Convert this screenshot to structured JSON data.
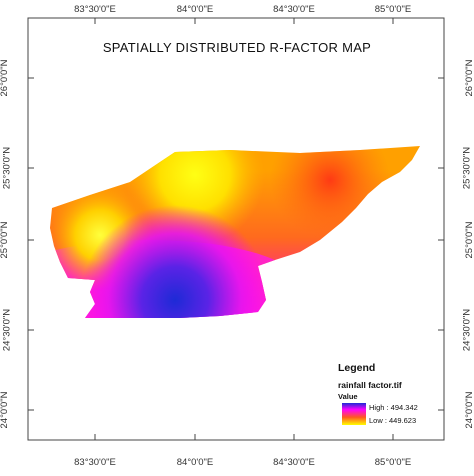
{
  "map": {
    "title": "SPATIALLY DISTRIBUTED R-FACTOR  MAP",
    "longitude_ticks": [
      "83°30'0\"E",
      "84°0'0\"E",
      "84°30'0\"E",
      "85°0'0\"E"
    ],
    "latitude_ticks": [
      "25°30'0\"N",
      "25°0'0\"N",
      "24°30'0\"N",
      "24°0'0\"N"
    ],
    "latitude_ticks_extra_top": "26°0'0\"N",
    "colors": {
      "high": "#1e2ad6",
      "upper_mid": "#ff00ff",
      "mid": "#ff5a1e",
      "low": "#ffff00"
    }
  },
  "legend": {
    "title": "Legend",
    "layer": "rainfall factor.tif",
    "value_label": "Value",
    "high": "High : 494.342",
    "low": "Low : 449.623"
  }
}
